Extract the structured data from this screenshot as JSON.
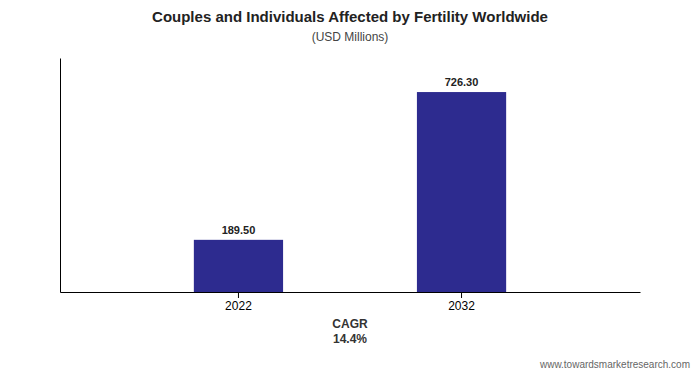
{
  "chart_data": {
    "type": "bar",
    "title": "Couples and Individuals Affected by Fertility Worldwide",
    "subtitle": "(USD Millions)",
    "categories": [
      "2022",
      "2032"
    ],
    "values": [
      189.5,
      726.3
    ],
    "value_labels": [
      "189.50",
      "726.30"
    ],
    "color": "#2d2b8f",
    "ylim": [
      0,
      850
    ],
    "tick_labels": "x",
    "data_labels": true,
    "annotations": [
      "CAGR\n14.4%",
      "www.towardsmarketresearch.com"
    ]
  }
}
